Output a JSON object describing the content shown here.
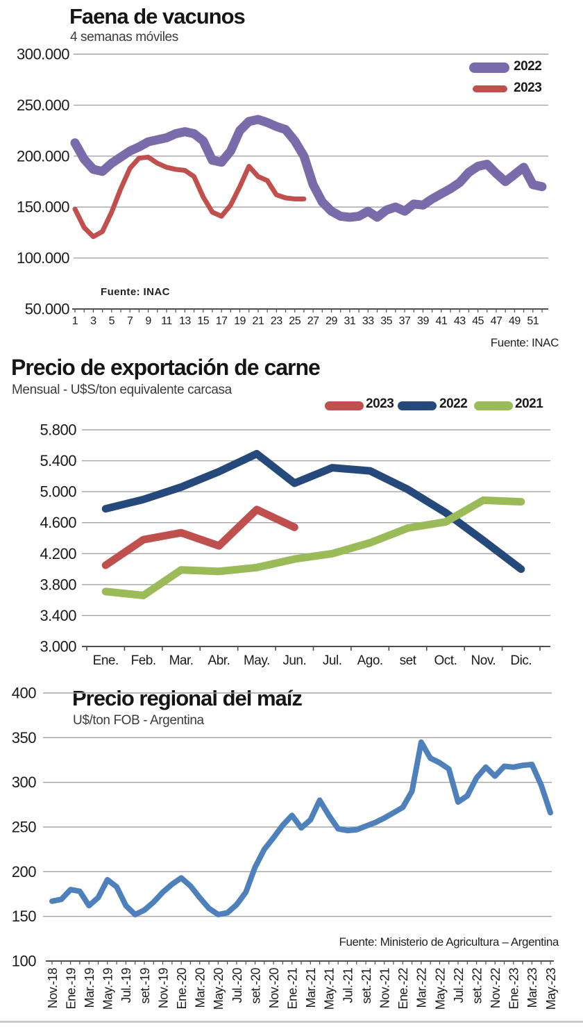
{
  "page": {
    "background": "#ffffff",
    "grid_color": "#a3a3a3",
    "axis_color": "#4d4d4d",
    "bottom_rule_color": "#cbcbcb"
  },
  "chart_data": [
    {
      "type": "line",
      "title": "Faena de vacunos",
      "subtitle": "4 semanas móviles",
      "source_inner": "Fuente: INAC",
      "source": "Fuente: INAC",
      "xlabel": "",
      "ylabel": "",
      "x_tick_labels": [
        "1",
        "3",
        "5",
        "7",
        "9",
        "11",
        "13",
        "15",
        "17",
        "19",
        "21",
        "23",
        "25",
        "27",
        "29",
        "31",
        "33",
        "35",
        "37",
        "39",
        "41",
        "43",
        "45",
        "47",
        "49",
        "51"
      ],
      "ylim": [
        50000,
        300000
      ],
      "yticks": {
        "values": [
          300000,
          250000,
          200000,
          150000,
          100000,
          50000
        ],
        "labels": [
          "300.000",
          "250.000",
          "200.000",
          "150.000",
          "100.000",
          "50.000"
        ]
      },
      "grid": "horizontal",
      "legend_position": "top-right",
      "legend": [
        {
          "label": "2022",
          "color": "#7a6baa"
        },
        {
          "label": "2023",
          "color": "#c0504d"
        }
      ],
      "series": [
        {
          "name": "2022",
          "color": "#7a6baa",
          "values": [
            213000,
            197000,
            187000,
            185000,
            193000,
            199000,
            205000,
            209000,
            214000,
            216000,
            218000,
            222000,
            224000,
            222000,
            215000,
            196000,
            194000,
            205000,
            225000,
            234000,
            236000,
            233000,
            229000,
            226000,
            215000,
            200000,
            172000,
            155000,
            146000,
            141000,
            140000,
            141000,
            146000,
            140000,
            147000,
            150000,
            146000,
            153000,
            152000,
            158000,
            163000,
            168000,
            174000,
            184000,
            190000,
            192000,
            183000,
            175000,
            182000,
            189000,
            172000,
            170000
          ]
        },
        {
          "name": "2023",
          "color": "#c0504d",
          "values": [
            148000,
            130000,
            121000,
            126000,
            145000,
            168000,
            188000,
            198000,
            199000,
            193000,
            189000,
            187000,
            186000,
            180000,
            160000,
            145000,
            141000,
            152000,
            170000,
            190000,
            180000,
            176000,
            162000,
            159000,
            158000,
            158000
          ]
        }
      ]
    },
    {
      "type": "line",
      "title": "Precio de exportación de carne",
      "subtitle": "Mensual - U$S/ton equivalente carcasa",
      "source": "",
      "categories": [
        "Ene.",
        "Feb.",
        "Mar.",
        "Abr.",
        "May.",
        "Jun.",
        "Jul.",
        "Ago.",
        "set",
        "Oct.",
        "Nov.",
        "Dic."
      ],
      "ylim": [
        3000,
        5800
      ],
      "yticks": {
        "values": [
          5800,
          5400,
          5000,
          4600,
          4200,
          3800,
          3400,
          3000
        ],
        "labels": [
          "5.800",
          "5.400",
          "5.000",
          "4.600",
          "4.200",
          "3.800",
          "3.400",
          "3.000"
        ]
      },
      "grid": "horizontal",
      "legend_position": "top-right",
      "legend": [
        {
          "label": "2023",
          "color": "#c0504d"
        },
        {
          "label": "2022",
          "color": "#25497b"
        },
        {
          "label": "2021",
          "color": "#9bbb59"
        }
      ],
      "series": [
        {
          "name": "2022",
          "color": "#25497b",
          "values": [
            4780,
            4900,
            5060,
            5260,
            5490,
            5110,
            5310,
            5270,
            5030,
            4730,
            4370,
            4000
          ]
        },
        {
          "name": "2021",
          "color": "#9bbb59",
          "values": [
            3710,
            3660,
            3990,
            3970,
            4020,
            4130,
            4200,
            4340,
            4530,
            4610,
            4890,
            4870
          ]
        },
        {
          "name": "2023",
          "color": "#c0504d",
          "values": [
            4050,
            4380,
            4470,
            4300,
            4770,
            4540
          ]
        }
      ]
    },
    {
      "type": "line",
      "title": "Precio regional del maíz",
      "subtitle": "U$/ton FOB - Argentina",
      "source": "Fuente: Ministerio de Agricultura – Argentina",
      "x_tick_labels": [
        "Nov.-18",
        "Ene.-19",
        "Mar.-19",
        "May.-19",
        "Jul.-19",
        "set.-19",
        "Nov.-19",
        "Ene.-20",
        "Mar.-20",
        "May.-20",
        "Jul.-20",
        "set.-20",
        "Nov.-20",
        "Ene.-21",
        "Mar.-21",
        "May.-21",
        "Jul.-21",
        "set.-21",
        "Nov.-21",
        "Ene.-22",
        "Mar.-22",
        "May.-22",
        "Jul.-22",
        "set.-22",
        "Nov.-22",
        "Ene.-23",
        "Mar.-23",
        "May.-23"
      ],
      "ylim": [
        100,
        400
      ],
      "yticks": {
        "values": [
          400,
          350,
          300,
          250,
          200,
          150,
          100
        ],
        "labels": [
          "400",
          "350",
          "300",
          "250",
          "200",
          "150",
          "100"
        ]
      },
      "grid": "horizontal",
      "legend": [],
      "series": [
        {
          "name": "maiz",
          "color": "#4e81bc",
          "values": [
            167,
            169,
            180,
            178,
            162,
            171,
            191,
            183,
            162,
            152,
            157,
            166,
            177,
            186,
            193,
            184,
            171,
            159,
            152,
            154,
            163,
            177,
            205,
            225,
            238,
            252,
            263,
            249,
            258,
            280,
            263,
            248,
            246,
            247,
            251,
            255,
            260,
            266,
            272,
            290,
            345,
            327,
            322,
            315,
            278,
            285,
            305,
            317,
            307,
            318,
            317,
            319,
            320,
            297,
            266
          ]
        }
      ]
    }
  ]
}
